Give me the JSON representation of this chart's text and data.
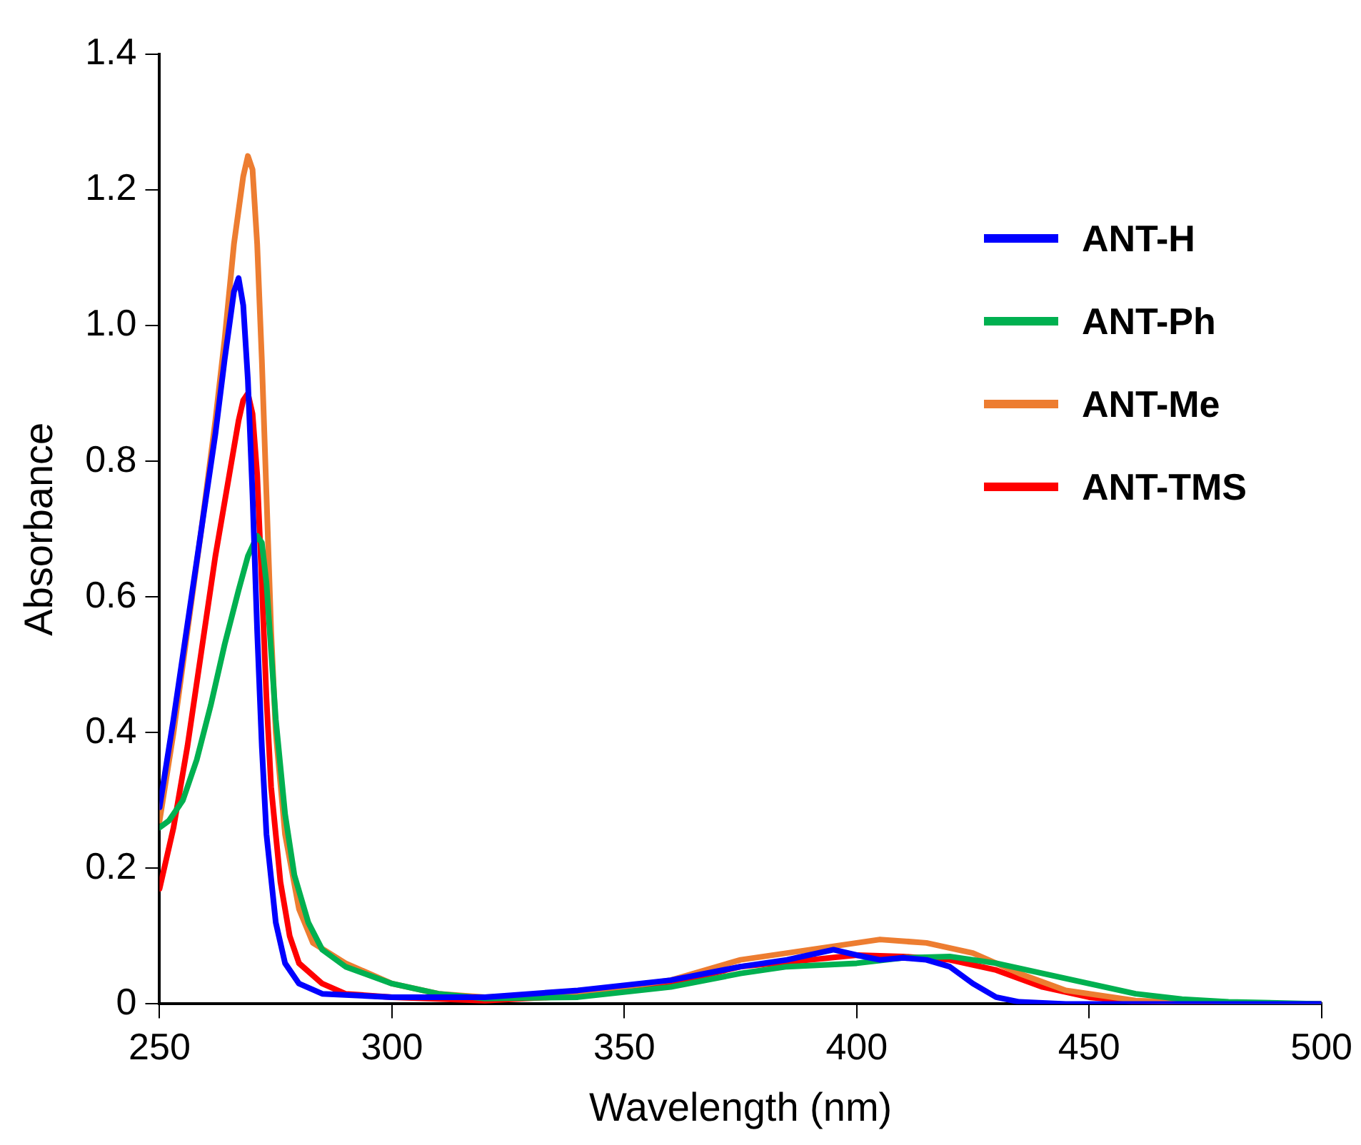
{
  "chart_data": {
    "type": "line",
    "xlabel": "Wavelength (nm)",
    "ylabel": "Absorbance",
    "xlim": [
      250,
      500
    ],
    "xticks": [
      250,
      300,
      350,
      400,
      450,
      500
    ],
    "ylim": [
      0,
      1.4
    ],
    "yticks": [
      0,
      0.2,
      0.4,
      0.6,
      0.8,
      {
        "value": 1,
        "label": "1.0"
      },
      1.2,
      1.4
    ],
    "grid": false,
    "legend": "top right",
    "marker": "none",
    "line_style": "solid",
    "series": [
      {
        "name": "ANT-H",
        "color": "#0000ff",
        "x": [
          250,
          253,
          256,
          259,
          262,
          264,
          266,
          267,
          268,
          269,
          270,
          271,
          272,
          273,
          275,
          277,
          280,
          285,
          300,
          320,
          340,
          360,
          375,
          385,
          395,
          400,
          405,
          410,
          415,
          420,
          425,
          430,
          435,
          445,
          500
        ],
        "values": [
          0.29,
          0.42,
          0.56,
          0.7,
          0.84,
          0.95,
          1.05,
          1.07,
          1.03,
          0.92,
          0.75,
          0.55,
          0.38,
          0.25,
          0.12,
          0.06,
          0.03,
          0.015,
          0.01,
          0.01,
          0.02,
          0.035,
          0.055,
          0.065,
          0.08,
          0.072,
          0.065,
          0.068,
          0.065,
          0.055,
          0.03,
          0.01,
          0.003,
          0,
          0
        ]
      },
      {
        "name": "ANT-Ph",
        "color": "#00b050",
        "x": [
          250,
          252,
          255,
          258,
          261,
          264,
          267,
          269,
          271,
          272,
          273,
          274,
          275,
          277,
          279,
          282,
          285,
          290,
          300,
          310,
          320,
          340,
          360,
          375,
          385,
          400,
          410,
          420,
          430,
          440,
          450,
          460,
          470,
          480,
          500
        ],
        "values": [
          0.26,
          0.27,
          0.3,
          0.36,
          0.44,
          0.53,
          0.61,
          0.66,
          0.69,
          0.68,
          0.62,
          0.52,
          0.42,
          0.28,
          0.19,
          0.12,
          0.08,
          0.055,
          0.03,
          0.015,
          0.008,
          0.01,
          0.025,
          0.045,
          0.055,
          0.06,
          0.068,
          0.07,
          0.06,
          0.045,
          0.03,
          0.015,
          0.007,
          0.003,
          0
        ]
      },
      {
        "name": "ANT-Me",
        "color": "#ed7d31",
        "x": [
          250,
          253,
          256,
          259,
          262,
          264,
          266,
          268,
          269,
          270,
          271,
          272,
          273,
          274,
          275,
          277,
          280,
          283,
          290,
          300,
          310,
          320,
          340,
          360,
          375,
          390,
          405,
          415,
          425,
          435,
          445,
          460,
          480,
          500
        ],
        "values": [
          0.27,
          0.4,
          0.55,
          0.7,
          0.86,
          0.98,
          1.12,
          1.22,
          1.25,
          1.23,
          1.12,
          0.95,
          0.75,
          0.55,
          0.4,
          0.25,
          0.14,
          0.09,
          0.06,
          0.03,
          0.015,
          0.01,
          0.015,
          0.035,
          0.065,
          0.08,
          0.095,
          0.09,
          0.075,
          0.045,
          0.02,
          0.005,
          0,
          0
        ]
      },
      {
        "name": "ANT-TMS",
        "color": "#ff0000",
        "x": [
          250,
          253,
          256,
          259,
          262,
          265,
          267,
          268,
          269,
          270,
          271,
          272,
          273,
          274,
          276,
          278,
          280,
          285,
          290,
          300,
          320,
          340,
          360,
          375,
          390,
          400,
          410,
          420,
          430,
          440,
          450,
          460,
          480,
          500
        ],
        "values": [
          0.17,
          0.26,
          0.38,
          0.52,
          0.66,
          0.78,
          0.86,
          0.89,
          0.9,
          0.87,
          0.78,
          0.62,
          0.45,
          0.32,
          0.18,
          0.1,
          0.06,
          0.03,
          0.015,
          0.01,
          0.005,
          0.012,
          0.03,
          0.055,
          0.065,
          0.072,
          0.07,
          0.065,
          0.05,
          0.025,
          0.01,
          0.003,
          0,
          0
        ]
      }
    ]
  }
}
